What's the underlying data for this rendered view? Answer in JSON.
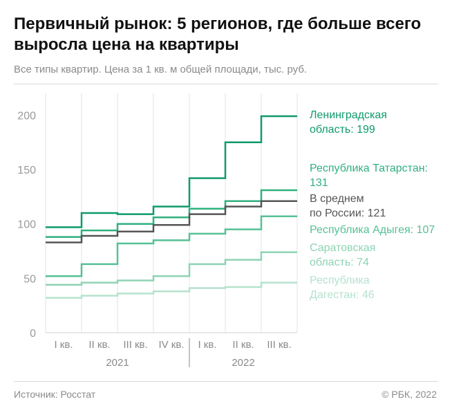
{
  "header": {
    "title": "Первичный рынок: 5 регионов, где больше всего выросла цена на квартиры",
    "subtitle": "Все типы квартир. Цена за 1 кв. м общей площади, тыс. руб."
  },
  "footer": {
    "source": "Источник: Росстат",
    "copyright": "© РБК, 2022"
  },
  "chart_data": {
    "type": "line",
    "step": true,
    "categories": [
      "I кв.",
      "II кв.",
      "III кв.",
      "IV кв.",
      "I кв.",
      "II кв.",
      "III кв."
    ],
    "year_groups": [
      {
        "label": "2021",
        "start": 0,
        "end": 3
      },
      {
        "label": "2022",
        "start": 4,
        "end": 6
      }
    ],
    "y_ticks": [
      0,
      50,
      100,
      150,
      200
    ],
    "ylim": [
      0,
      220
    ],
    "grid": "vertical",
    "series": [
      {
        "name": "Ленинградская область",
        "label_lines": [
          "Ленинградская",
          "область: 199"
        ],
        "color": "#0e9a6a",
        "values": [
          97,
          110,
          109,
          116,
          142,
          175,
          199
        ]
      },
      {
        "name": "Республика Татарстан",
        "label_lines": [
          "Республика Татарстан:",
          "131"
        ],
        "color": "#2fb07f",
        "values": [
          88,
          94,
          100,
          106,
          114,
          121,
          131
        ]
      },
      {
        "name": "В среднем по России",
        "label_lines": [
          "В среднем",
          "по России: 121"
        ],
        "color": "#555555",
        "values": [
          83,
          89,
          93,
          99,
          109,
          116,
          121
        ]
      },
      {
        "name": "Республика Адыгея",
        "label_lines": [
          "Республика Адыгея: 107"
        ],
        "color": "#56c095",
        "values": [
          52,
          63,
          82,
          85,
          91,
          95,
          107
        ]
      },
      {
        "name": "Саратовская область",
        "label_lines": [
          "Саратовская",
          "область: 74"
        ],
        "color": "#8dd3b4",
        "values": [
          44,
          46,
          48,
          52,
          63,
          67,
          74
        ]
      },
      {
        "name": "Республика Дагестан",
        "label_lines": [
          "Республика",
          "Дагестан: 46"
        ],
        "color": "#b5e2cd",
        "values": [
          32,
          34,
          36,
          38,
          41,
          42,
          46
        ]
      }
    ]
  }
}
